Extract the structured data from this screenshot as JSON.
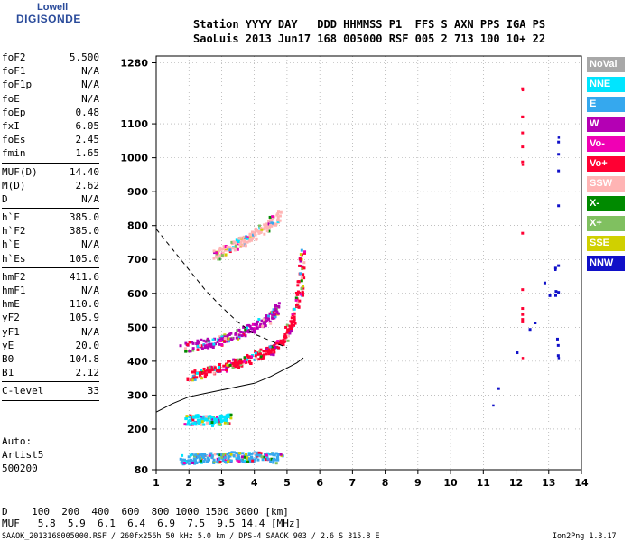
{
  "logo": {
    "line1": "Lowell",
    "line2": "DIGISONDE"
  },
  "header": {
    "line1": "Station YYYY DAY   DDD HHMMSS P1  FFS S AXN PPS IGA PS",
    "line2": "SaoLuis 2013 Jun17 168 005000 RSF 005 2 713 100 10+ 22"
  },
  "params": {
    "group1": [
      {
        "k": "foF2",
        "v": "5.500"
      },
      {
        "k": "foF1",
        "v": "N/A"
      },
      {
        "k": "foF1p",
        "v": "N/A"
      },
      {
        "k": "foE",
        "v": "N/A"
      },
      {
        "k": "foEp",
        "v": "0.48"
      },
      {
        "k": "fxI",
        "v": "6.05"
      },
      {
        "k": "foEs",
        "v": "2.45"
      },
      {
        "k": "fmin",
        "v": "1.65"
      }
    ],
    "group2": [
      {
        "k": "MUF(D)",
        "v": "14.40"
      },
      {
        "k": "M(D)",
        "v": "2.62"
      },
      {
        "k": "D",
        "v": "N/A"
      }
    ],
    "group3": [
      {
        "k": "h`F",
        "v": "385.0"
      },
      {
        "k": "h`F2",
        "v": "385.0"
      },
      {
        "k": "h`E",
        "v": "N/A"
      },
      {
        "k": "h`Es",
        "v": "105.0"
      }
    ],
    "group4": [
      {
        "k": "hmF2",
        "v": "411.6"
      },
      {
        "k": "hmF1",
        "v": "N/A"
      },
      {
        "k": "hmE",
        "v": "110.0"
      },
      {
        "k": "yF2",
        "v": "105.9"
      },
      {
        "k": "yF1",
        "v": "N/A"
      },
      {
        "k": "yE",
        "v": "20.0"
      },
      {
        "k": "B0",
        "v": "104.8"
      },
      {
        "k": "B1",
        "v": "2.12"
      }
    ],
    "group5": [
      {
        "k": "C-level",
        "v": "33"
      }
    ]
  },
  "auto": {
    "line1": "Auto:",
    "line2": "Artist5",
    "line3": "500200"
  },
  "legend": [
    {
      "label": "NoVal",
      "color": "#a8a8a8"
    },
    {
      "label": "NNE",
      "color": "#00e5ff"
    },
    {
      "label": "E",
      "color": "#35a8ee"
    },
    {
      "label": "W",
      "color": "#b400b4"
    },
    {
      "label": "Vo-",
      "color": "#f000b4"
    },
    {
      "label": "Vo+",
      "color": "#ff0033"
    },
    {
      "label": "SSW",
      "color": "#ffb4b4"
    },
    {
      "label": "X-",
      "color": "#008a00"
    },
    {
      "label": "X+",
      "color": "#80c060"
    },
    {
      "label": "SSE",
      "color": "#d0d000"
    },
    {
      "label": "NNW",
      "color": "#1010c8"
    }
  ],
  "footer": {
    "line1": "D    100  200  400  600  800 1000 1500 3000 [km]",
    "line2": "MUF   5.8  5.9  6.1  6.4  6.9  7.5  9.5 14.4 [MHz]",
    "line3": "SAAOK_2013168005000.RSF / 260fx256h 50 kHz 5.0 km / DPS-4 SAAOK 903 / 2.6 S 315.8 E",
    "version": "Ion2Png 1.3.17"
  },
  "chart_data": {
    "type": "scatter",
    "title": "",
    "xlabel": "",
    "ylabel": "",
    "xlim": [
      1,
      14
    ],
    "ylim": [
      80,
      1300
    ],
    "x_ticks": [
      1,
      2,
      3,
      4,
      5,
      6,
      7,
      8,
      9,
      10,
      11,
      12,
      13,
      14
    ],
    "y_ticks": [
      80,
      200,
      300,
      400,
      500,
      600,
      700,
      800,
      900,
      1000,
      1100,
      1280
    ],
    "y_tick_labels": [
      "80",
      "200",
      "300",
      "400",
      "500",
      "600",
      "700",
      "800",
      "900",
      "1000",
      "1100",
      "1280"
    ],
    "grid": "dotted",
    "traces": [
      {
        "name": "F2 O-trace",
        "series": "Vo+",
        "x": [
          2.0,
          2.5,
          3.0,
          3.5,
          4.0,
          4.5,
          4.9,
          5.2,
          5.4,
          5.5
        ],
        "y": [
          355,
          365,
          380,
          395,
          410,
          430,
          460,
          520,
          600,
          720
        ]
      },
      {
        "name": "F2 X-trace",
        "series": "W",
        "x": [
          1.8,
          2.5,
          3.0,
          3.5,
          4.0,
          4.5,
          4.7
        ],
        "y": [
          440,
          450,
          460,
          480,
          500,
          530,
          560
        ]
      },
      {
        "name": "2F trace",
        "series": "SSW",
        "x": [
          2.8,
          3.2,
          3.6,
          4.0,
          4.4,
          4.8
        ],
        "y": [
          710,
          730,
          750,
          770,
          800,
          830
        ]
      },
      {
        "name": "Es trace",
        "series": "E",
        "x": [
          1.8,
          2.2,
          2.6,
          3.0,
          3.4,
          3.8,
          4.3,
          4.8
        ],
        "y": [
          110,
          112,
          115,
          113,
          118,
          115,
          120,
          112
        ]
      },
      {
        "name": "2Es trace",
        "series": "NNE",
        "x": [
          1.9,
          2.3,
          2.7,
          3.0,
          3.3
        ],
        "y": [
          225,
          228,
          222,
          226,
          230
        ]
      },
      {
        "name": "interference 12.2 MHz",
        "series": "Vo+",
        "x": [
          12.2,
          12.2,
          12.2
        ],
        "y": [
          1200,
          980,
          410
        ]
      },
      {
        "name": "isolated echoes",
        "series": "NNW",
        "x": [
          13.3,
          13.3,
          13.2,
          11.3
        ],
        "y": [
          1060,
          410,
          670,
          270
        ]
      }
    ],
    "curves": [
      {
        "name": "MUF curve",
        "style": "dashed",
        "x": [
          1.0,
          1.5,
          2.0,
          2.5,
          3.0,
          3.5,
          4.0,
          4.5,
          5.0
        ],
        "y": [
          790,
          730,
          670,
          610,
          560,
          515,
          480,
          460,
          440
        ]
      },
      {
        "name": "true height profile",
        "style": "solid",
        "x": [
          1.0,
          1.5,
          2.0,
          2.5,
          3.0,
          3.5,
          4.0,
          4.5,
          5.0,
          5.3,
          5.5
        ],
        "y": [
          250,
          275,
          295,
          305,
          315,
          325,
          335,
          355,
          380,
          395,
          410
        ]
      }
    ]
  }
}
